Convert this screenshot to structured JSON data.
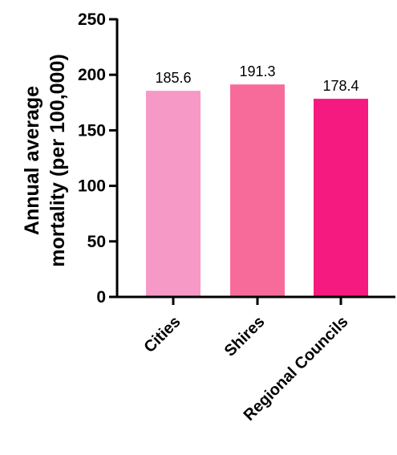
{
  "chart_data": {
    "type": "bar",
    "categories": [
      "Cities",
      "Shires",
      "Regional Councils"
    ],
    "values": [
      185.6,
      191.3,
      178.4
    ],
    "data_labels": [
      "185.6",
      "191.3",
      "178.4"
    ],
    "title": "",
    "xlabel": "",
    "ylabel_lines": [
      "Annual average",
      "mortality (per 100,000)"
    ],
    "ylim": [
      0,
      250
    ],
    "yticks": [
      0,
      50,
      100,
      150,
      200,
      250
    ],
    "ytick_labels": [
      "0",
      "50",
      "100",
      "150",
      "200",
      "250"
    ],
    "grid": false,
    "legend": "none",
    "colors": [
      "#f799c6",
      "#f76b9a",
      "#f51a80"
    ]
  }
}
